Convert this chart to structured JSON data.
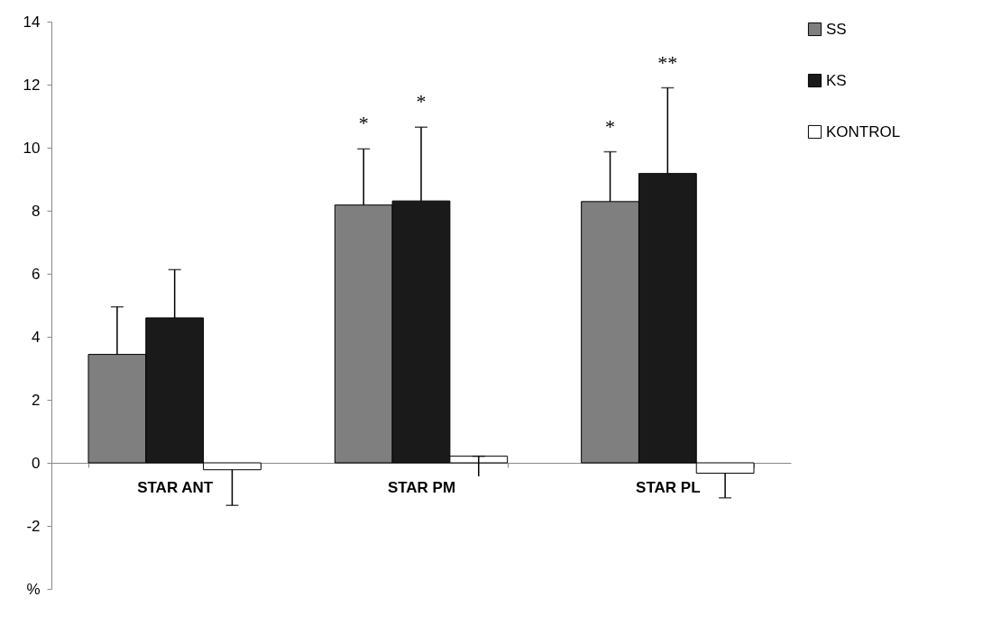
{
  "chart_data": {
    "type": "bar",
    "categories": [
      "STAR ANT",
      "STAR PM",
      "STAR PL"
    ],
    "series": [
      {
        "name": "SS",
        "color": "#7f7f7f",
        "values": [
          3.44,
          8.18,
          8.29
        ],
        "errors": [
          [
            3.44,
            4.95
          ],
          [
            8.18,
            9.96
          ],
          [
            8.29,
            9.87
          ]
        ]
      },
      {
        "name": "KS",
        "color": "#1a1a1a",
        "values": [
          4.6,
          8.31,
          9.18
        ],
        "errors": [
          [
            4.6,
            6.13
          ],
          [
            8.31,
            10.65
          ],
          [
            9.18,
            11.9
          ]
        ]
      },
      {
        "name": "KONTROL",
        "color": "#ffffff",
        "values": [
          -0.22,
          0.21,
          -0.33
        ],
        "errors": [
          [
            -1.35,
            -0.22
          ],
          [
            -0.43,
            0.21
          ],
          [
            -1.11,
            -0.33
          ]
        ]
      }
    ],
    "ylim": [
      -4,
      14
    ],
    "yticks": [
      {
        "value": -4,
        "label": "%"
      },
      -2,
      0,
      2,
      4,
      6,
      8,
      10,
      12,
      14
    ],
    "annotations": [
      {
        "text": "*",
        "x": "STAR PM",
        "y": 9.96
      },
      {
        "text": "*",
        "x": "STAR PM",
        "y": 10.65
      },
      {
        "text": "*",
        "x": "STAR PL",
        "y": 9.87
      },
      {
        "text": "**",
        "x": "STAR PL",
        "y": 11.9
      }
    ],
    "grid": false,
    "legend": "right"
  }
}
